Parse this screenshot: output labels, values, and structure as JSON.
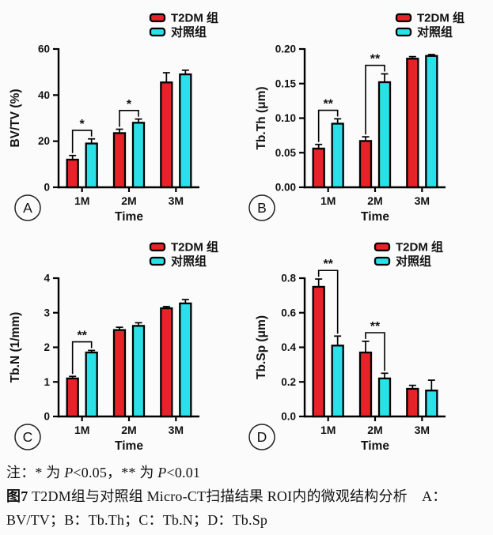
{
  "legend": {
    "series1_label": "T2DM 组",
    "series2_label": "对照组"
  },
  "colors": {
    "t2dm": "#e62328",
    "control": "#29e1e6",
    "axis": "#000000",
    "background": "#fbfbfb"
  },
  "chart_data": [
    {
      "type": "bar",
      "panel_label": "A",
      "ylabel": "BV/TV (%)",
      "xlabel": "Time",
      "categories": [
        "1M",
        "2M",
        "3M"
      ],
      "ylim": [
        0,
        60
      ],
      "yticks": [
        "0",
        "20",
        "40",
        "60"
      ],
      "grid": false,
      "legend_position": "top-right",
      "series": [
        {
          "name": "T2DM 组",
          "color": "#e62328",
          "values": [
            12,
            23.5,
            45.5
          ],
          "errors": [
            1.8,
            1.7,
            4.2
          ]
        },
        {
          "name": "对照组",
          "color": "#29e1e6",
          "values": [
            19,
            28,
            49
          ],
          "errors": [
            2.0,
            1.6,
            1.8
          ]
        }
      ],
      "significance": [
        {
          "group": 0,
          "label": "*"
        },
        {
          "group": 1,
          "label": "*"
        }
      ]
    },
    {
      "type": "bar",
      "panel_label": "B",
      "ylabel": "Tb.Th (μm)",
      "xlabel": "Time",
      "categories": [
        "1M",
        "2M",
        "3M"
      ],
      "ylim": [
        0,
        0.2
      ],
      "yticks": [
        "0.00",
        "0.05",
        "0.10",
        "0.15",
        "0.20"
      ],
      "grid": false,
      "legend_position": "top-right",
      "series": [
        {
          "name": "T2DM 组",
          "color": "#e62328",
          "values": [
            0.056,
            0.067,
            0.186
          ],
          "errors": [
            0.006,
            0.006,
            0.003
          ]
        },
        {
          "name": "对照组",
          "color": "#29e1e6",
          "values": [
            0.092,
            0.152,
            0.19
          ],
          "errors": [
            0.007,
            0.012,
            0.002
          ]
        }
      ],
      "significance": [
        {
          "group": 0,
          "label": "**"
        },
        {
          "group": 1,
          "label": "**"
        }
      ]
    },
    {
      "type": "bar",
      "panel_label": "C",
      "ylabel": "Tb.N (1/mm)",
      "xlabel": "Time",
      "categories": [
        "1M",
        "2M",
        "3M"
      ],
      "ylim": [
        0,
        4
      ],
      "yticks": [
        "0",
        "1",
        "2",
        "3",
        "4"
      ],
      "grid": false,
      "legend_position": "top-right",
      "series": [
        {
          "name": "T2DM 组",
          "color": "#e62328",
          "values": [
            1.1,
            2.5,
            3.13
          ],
          "errors": [
            0.06,
            0.08,
            0.05
          ]
        },
        {
          "name": "对照组",
          "color": "#29e1e6",
          "values": [
            1.85,
            2.62,
            3.27
          ],
          "errors": [
            0.06,
            0.09,
            0.11
          ]
        }
      ],
      "significance": [
        {
          "group": 0,
          "label": "**"
        }
      ]
    },
    {
      "type": "bar",
      "panel_label": "D",
      "ylabel": "Tb.Sp (μm)",
      "xlabel": "Time",
      "categories": [
        "1M",
        "2M",
        "3M"
      ],
      "ylim": [
        0,
        0.8
      ],
      "yticks": [
        "0.0",
        "0.2",
        "0.4",
        "0.6",
        "0.8"
      ],
      "grid": false,
      "legend_position": "top-right",
      "series": [
        {
          "name": "T2DM 组",
          "color": "#e62328",
          "values": [
            0.75,
            0.37,
            0.16
          ],
          "errors": [
            0.045,
            0.065,
            0.02
          ]
        },
        {
          "name": "对照组",
          "color": "#29e1e6",
          "values": [
            0.41,
            0.22,
            0.15
          ],
          "errors": [
            0.055,
            0.03,
            0.06
          ]
        }
      ],
      "significance": [
        {
          "group": 0,
          "label": "**"
        },
        {
          "group": 1,
          "label": "**"
        }
      ]
    }
  ],
  "note_line": [
    {
      "text": "注：* 为 "
    },
    {
      "text": "P",
      "italic": true
    },
    {
      "text": "<0.05，** 为 "
    },
    {
      "text": "P",
      "italic": true
    },
    {
      "text": "<0.01"
    }
  ],
  "figure_caption": [
    {
      "text": "图7",
      "bold": true
    },
    {
      "text": "  T2DM组与对照组 Micro-CT扫描结果 ROI内的微观结构分析　A：BV/TV；B：Tb.Th；C：Tb.N；D：Tb.Sp"
    }
  ]
}
